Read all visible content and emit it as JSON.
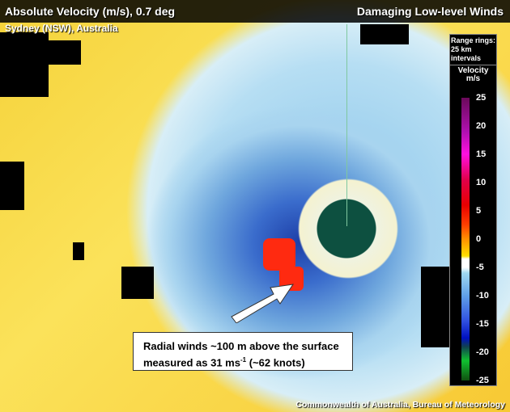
{
  "header": {
    "title": "Absolute Velocity (m/s), 0.7 deg",
    "location": "Sydney (NSW), Australia",
    "right_title": "Damaging Low-level Winds"
  },
  "legend": {
    "range_rings": "Range rings: 25 km intervals",
    "velocity_title": "Velocity",
    "unit": "m/s",
    "ticks": [
      "25",
      "20",
      "15",
      "10",
      "5",
      "0",
      "-5",
      "-10",
      "-15",
      "-20",
      "-25"
    ]
  },
  "annotation": {
    "line1": "Radial winds ~100 m above the surface",
    "line2_pre": "measured as 31 ms",
    "line2_sup": "-1",
    "line2_post": " (~62 knots)"
  },
  "credit": "Commonwealth of Australia, Bureau of Meteorology",
  "colors": {
    "velocity_max": "#6a0a5a",
    "zero": "#ffffff",
    "velocity_min": "#105010",
    "radar_site": "#0d5040"
  }
}
